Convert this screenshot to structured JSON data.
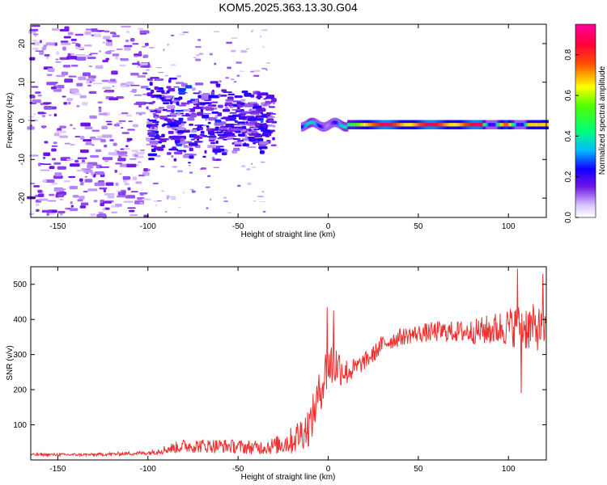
{
  "title": "KOM5.2025.363.13.30.G04",
  "colors": {
    "background": "#ffffff",
    "snr_line": "#f03030",
    "cmap_low": "#dcc8ff",
    "cmap_mid_low": "#6010e0",
    "cmap_blue": "#0000ff",
    "cmap_cyan": "#00ffff",
    "cmap_green": "#00ff00",
    "cmap_yellow": "#ffff00",
    "cmap_red": "#ff0000",
    "cmap_top": "#ff0090"
  },
  "chart_data": [
    {
      "type": "heatmap",
      "name": "spectrogram",
      "xlabel": "Height of straight line (km)",
      "ylabel": "Frequency (Hz)",
      "xlim": [
        -165,
        121
      ],
      "ylim": [
        -25,
        25
      ],
      "xticks": [
        -150,
        -100,
        -50,
        0,
        50,
        100
      ],
      "yticks": [
        -20,
        -10,
        0,
        10,
        20
      ],
      "colorbar": {
        "label": "Normalized spectral amplitude",
        "range": [
          0,
          0.95
        ],
        "ticks": [
          0.0,
          0.2,
          0.4,
          0.6,
          0.8
        ]
      },
      "description_of_data": {
        "noise_region_x": [
          -165,
          -100
        ],
        "cluster_region_x": [
          -100,
          -30
        ],
        "cluster_freq_range": [
          -10,
          10
        ],
        "tone_start_x": -15,
        "tone_freq": -1.0,
        "tone_peak_amplitude": 0.95
      }
    },
    {
      "type": "line",
      "name": "snr",
      "xlabel": "Height of straight line (km)",
      "ylabel": "SNR (v/v)",
      "xlim": [
        -165,
        121
      ],
      "ylim": [
        0,
        550
      ],
      "xticks": [
        -150,
        -100,
        -50,
        0,
        50,
        100
      ],
      "yticks": [
        100,
        200,
        300,
        400,
        500
      ],
      "trend_x": [
        -165,
        -130,
        -100,
        -80,
        -60,
        -40,
        -30,
        -20,
        -10,
        -5,
        0,
        5,
        10,
        15,
        20,
        25,
        30,
        40,
        50,
        60,
        70,
        80,
        90,
        100,
        110,
        121
      ],
      "trend_y": [
        15,
        15,
        20,
        40,
        40,
        35,
        40,
        55,
        100,
        190,
        270,
        270,
        250,
        260,
        280,
        300,
        330,
        350,
        360,
        365,
        365,
        365,
        370,
        380,
        380,
        370
      ],
      "noise_amplitude": [
        4,
        4,
        6,
        20,
        20,
        20,
        25,
        40,
        60,
        60,
        80,
        60,
        40,
        30,
        25,
        25,
        25,
        25,
        25,
        30,
        30,
        35,
        45,
        55,
        70,
        60
      ],
      "spikes": [
        {
          "x": -0.5,
          "y": 435
        },
        {
          "x": 3,
          "y": 425
        },
        {
          "x": 105,
          "y": 545
        },
        {
          "x": 107,
          "y": 190
        },
        {
          "x": 119,
          "y": 530
        }
      ]
    }
  ]
}
